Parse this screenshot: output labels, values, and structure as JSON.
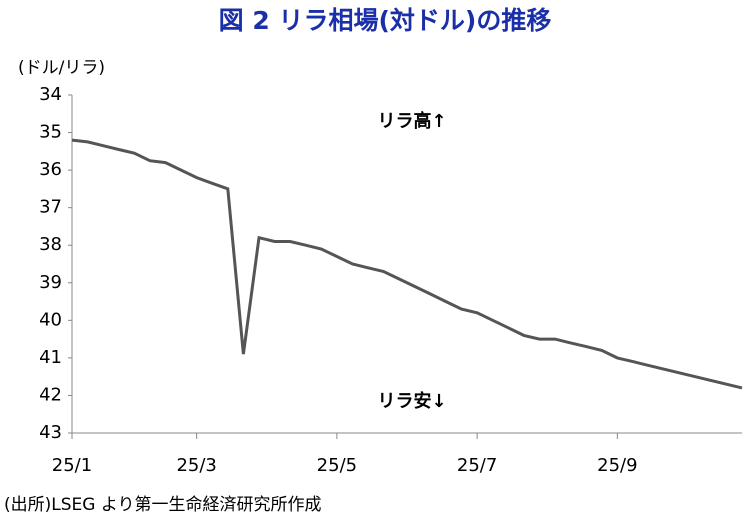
{
  "chart_data": {
    "type": "line",
    "title": "図 2  リラ相場(対ドル)の推移",
    "y_label": "(ドル/リラ)",
    "source": "(出所)LSEG より第一生命経済研究所作成",
    "annotations": [
      "リラ高↑",
      "リラ安↓"
    ],
    "categories": [
      "25/1",
      null,
      null,
      null,
      null,
      null,
      null,
      null,
      "25/3",
      null,
      null,
      null,
      null,
      null,
      null,
      null,
      null,
      "25/5",
      null,
      null,
      null,
      null,
      null,
      null,
      null,
      null,
      "25/7",
      null,
      null,
      null,
      null,
      null,
      null,
      null,
      null,
      "25/9",
      null,
      null,
      null,
      null,
      null,
      null,
      null,
      null
    ],
    "values": [
      35.2,
      35.25,
      35.35,
      35.45,
      35.55,
      35.75,
      35.8,
      36.0,
      36.2,
      36.35,
      36.5,
      40.9,
      37.8,
      37.9,
      37.9,
      38.0,
      38.1,
      38.3,
      38.5,
      38.6,
      38.7,
      38.9,
      39.1,
      39.3,
      39.5,
      39.7,
      39.8,
      40.0,
      40.2,
      40.4,
      40.5,
      40.5,
      40.6,
      40.7,
      40.8,
      41.0,
      41.1,
      41.2,
      41.3,
      41.4,
      41.5,
      41.6,
      41.7,
      41.8
    ],
    "color": "#555555",
    "ylim": [
      34,
      43
    ],
    "yticks": [
      34,
      35,
      36,
      37,
      38,
      39,
      40,
      41,
      42,
      43
    ],
    "y_reversed": true,
    "grid": false
  }
}
